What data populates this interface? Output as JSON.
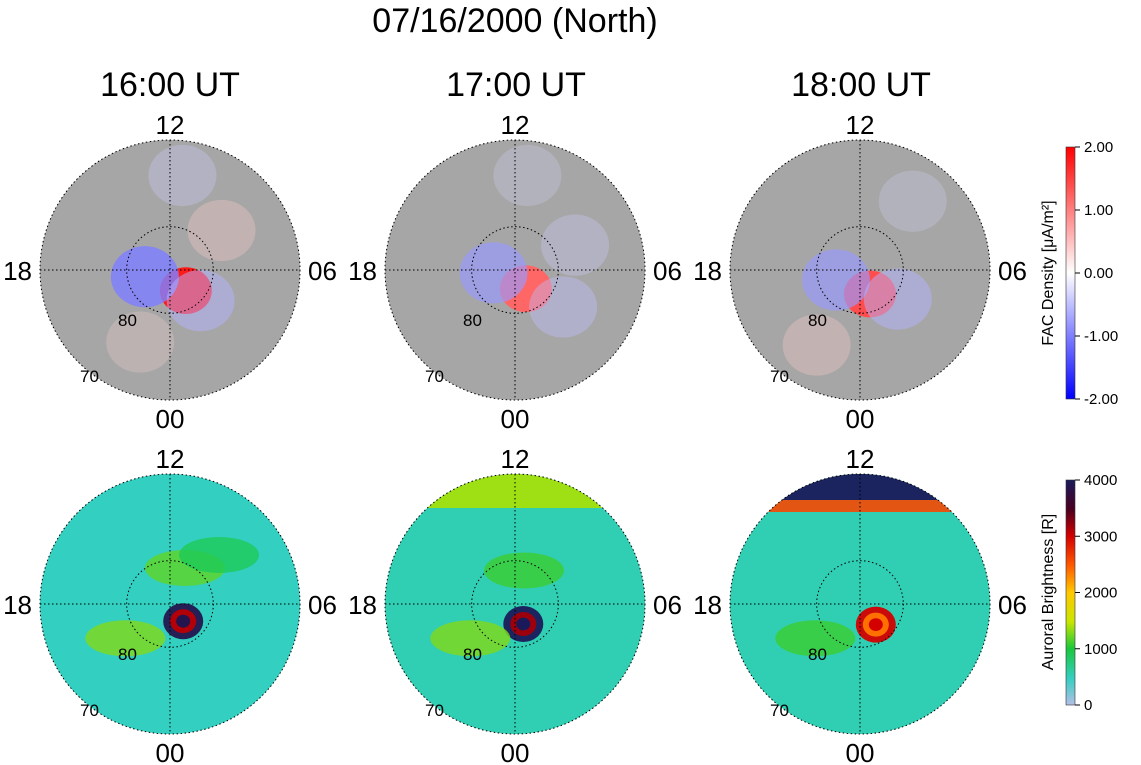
{
  "figure": {
    "title": "07/16/2000 (North)"
  },
  "panels": [
    {
      "time": "16:00 UT"
    },
    {
      "time": "17:00 UT"
    },
    {
      "time": "18:00 UT"
    }
  ],
  "polar_axes": {
    "mlt_labels": {
      "top": "12",
      "bottom": "00",
      "left": "18",
      "right": "06"
    },
    "lat_labels": [
      "80",
      "70"
    ]
  },
  "colorbars": {
    "fac": {
      "label": "FAC Density [μA/m²]",
      "ticks": [
        "2.00",
        "1.00",
        "0.00",
        "-1.00",
        "-2.00"
      ],
      "min": -2,
      "max": 2,
      "colors": [
        "#0000ff",
        "#ffffff",
        "#ff0000"
      ]
    },
    "aurora": {
      "label": "Auroral Brightness [R]",
      "ticks": [
        "4000",
        "3000",
        "2000",
        "1000",
        "0"
      ],
      "min": 0,
      "max": 4000,
      "colors": [
        "#b3bfe6",
        "#33cfc0",
        "#19c83c",
        "#c8e600",
        "#ffc800",
        "#ff5a00",
        "#d40000",
        "#4a0020",
        "#1a1a5a"
      ]
    }
  },
  "chart_data": [
    {
      "type": "heatmap",
      "title": "16:00 UT",
      "projection": "polar (magnetic latitude vs. MLT)",
      "quantity": "FAC Density [μA/m²]",
      "mlt_ticks": [
        "12",
        "06",
        "00",
        "18"
      ],
      "lat_circles": [
        80,
        70
      ],
      "range": [
        -2,
        2
      ],
      "features": [
        {
          "name": "upward",
          "mlat": 84,
          "mlt": 9.5,
          "value": 1.8
        },
        {
          "name": "downward",
          "mlat": 84,
          "mlt": 17.0,
          "value": -1.0
        },
        {
          "name": "downward",
          "mlat": 80,
          "mlt": 9.0,
          "value": -0.6
        },
        {
          "name": "upward",
          "mlat": 72,
          "mlt": 13.5,
          "value": 0.3
        },
        {
          "name": "upward",
          "mlat": 75,
          "mlt": 3.5,
          "value": 0.4
        },
        {
          "name": "downward",
          "mlat": 68,
          "mlt": 0.5,
          "value": -0.4
        }
      ]
    },
    {
      "type": "heatmap",
      "title": "17:00 UT",
      "projection": "polar (magnetic latitude vs. MLT)",
      "quantity": "FAC Density [μA/m²]",
      "mlt_ticks": [
        "12",
        "06",
        "00",
        "18"
      ],
      "lat_circles": [
        80,
        70
      ],
      "range": [
        -2,
        2
      ],
      "features": [
        {
          "name": "upward",
          "mlat": 85,
          "mlt": 10.0,
          "value": 1.2
        },
        {
          "name": "downward",
          "mlat": 85,
          "mlt": 17.5,
          "value": -0.8
        },
        {
          "name": "downward",
          "mlat": 76,
          "mlt": 8.5,
          "value": -0.5
        },
        {
          "name": "downward",
          "mlat": 75,
          "mlt": 4.5,
          "value": -0.4
        },
        {
          "name": "downward",
          "mlat": 68,
          "mlt": 0.5,
          "value": -0.3
        }
      ]
    },
    {
      "type": "heatmap",
      "title": "18:00 UT",
      "projection": "polar (magnetic latitude vs. MLT)",
      "quantity": "FAC Density [μA/m²]",
      "mlt_ticks": [
        "12",
        "06",
        "00",
        "18"
      ],
      "lat_circles": [
        80,
        70
      ],
      "range": [
        -2,
        2
      ],
      "features": [
        {
          "name": "upward",
          "mlat": 84,
          "mlt": 10.5,
          "value": 1.4
        },
        {
          "name": "downward",
          "mlat": 84,
          "mlt": 16.5,
          "value": -0.8
        },
        {
          "name": "downward",
          "mlat": 79,
          "mlt": 8.5,
          "value": -0.6
        },
        {
          "name": "upward",
          "mlat": 70,
          "mlt": 14.0,
          "value": 0.4
        },
        {
          "name": "downward",
          "mlat": 70,
          "mlt": 2.5,
          "value": -0.3
        }
      ]
    },
    {
      "type": "heatmap",
      "title": "16:00 UT",
      "projection": "polar (magnetic latitude vs. MLT)",
      "quantity": "Auroral Brightness [R]",
      "mlt_ticks": [
        "12",
        "06",
        "00",
        "18"
      ],
      "lat_circles": [
        80,
        70
      ],
      "range": [
        0,
        4000
      ],
      "background": 500,
      "features": [
        {
          "name": "spot",
          "mlat": 85,
          "mlt": 9.5,
          "value": 3900
        },
        {
          "name": "oval",
          "mlat": 77,
          "mlt": 15.5,
          "value": 1300
        },
        {
          "name": "oval",
          "mlat": 81,
          "mlt": 1.5,
          "value": 1200
        },
        {
          "name": "oval",
          "mlat": 74,
          "mlt": 3.0,
          "value": 900
        }
      ]
    },
    {
      "type": "heatmap",
      "title": "17:00 UT",
      "projection": "polar (magnetic latitude vs. MLT)",
      "quantity": "Auroral Brightness [R]",
      "mlt_ticks": [
        "12",
        "06",
        "00",
        "18"
      ],
      "lat_circles": [
        80,
        70
      ],
      "range": [
        0,
        4000
      ],
      "background": 550,
      "features": [
        {
          "name": "spot",
          "mlat": 85,
          "mlt": 10.5,
          "value": 4000
        },
        {
          "name": "oval",
          "mlat": 77,
          "mlt": 15.5,
          "value": 1300
        },
        {
          "name": "cap",
          "mlat": 65,
          "mlt": 11.0,
          "value": 1400
        },
        {
          "name": "oval",
          "mlat": 82,
          "mlt": 1.0,
          "value": 1100
        }
      ]
    },
    {
      "type": "heatmap",
      "title": "18:00 UT",
      "projection": "polar (magnetic latitude vs. MLT)",
      "quantity": "Auroral Brightness [R]",
      "mlt_ticks": [
        "12",
        "06",
        "00",
        "18"
      ],
      "lat_circles": [
        80,
        70
      ],
      "range": [
        0,
        4000
      ],
      "background": 550,
      "features": [
        {
          "name": "spot",
          "mlat": 84,
          "mlt": 9.5,
          "value": 3000
        },
        {
          "name": "dayside cap",
          "mlat": 62,
          "mlt": 12.0,
          "value": 4000
        },
        {
          "name": "oval",
          "mlat": 77,
          "mlt": 15.5,
          "value": 1100
        }
      ]
    }
  ]
}
